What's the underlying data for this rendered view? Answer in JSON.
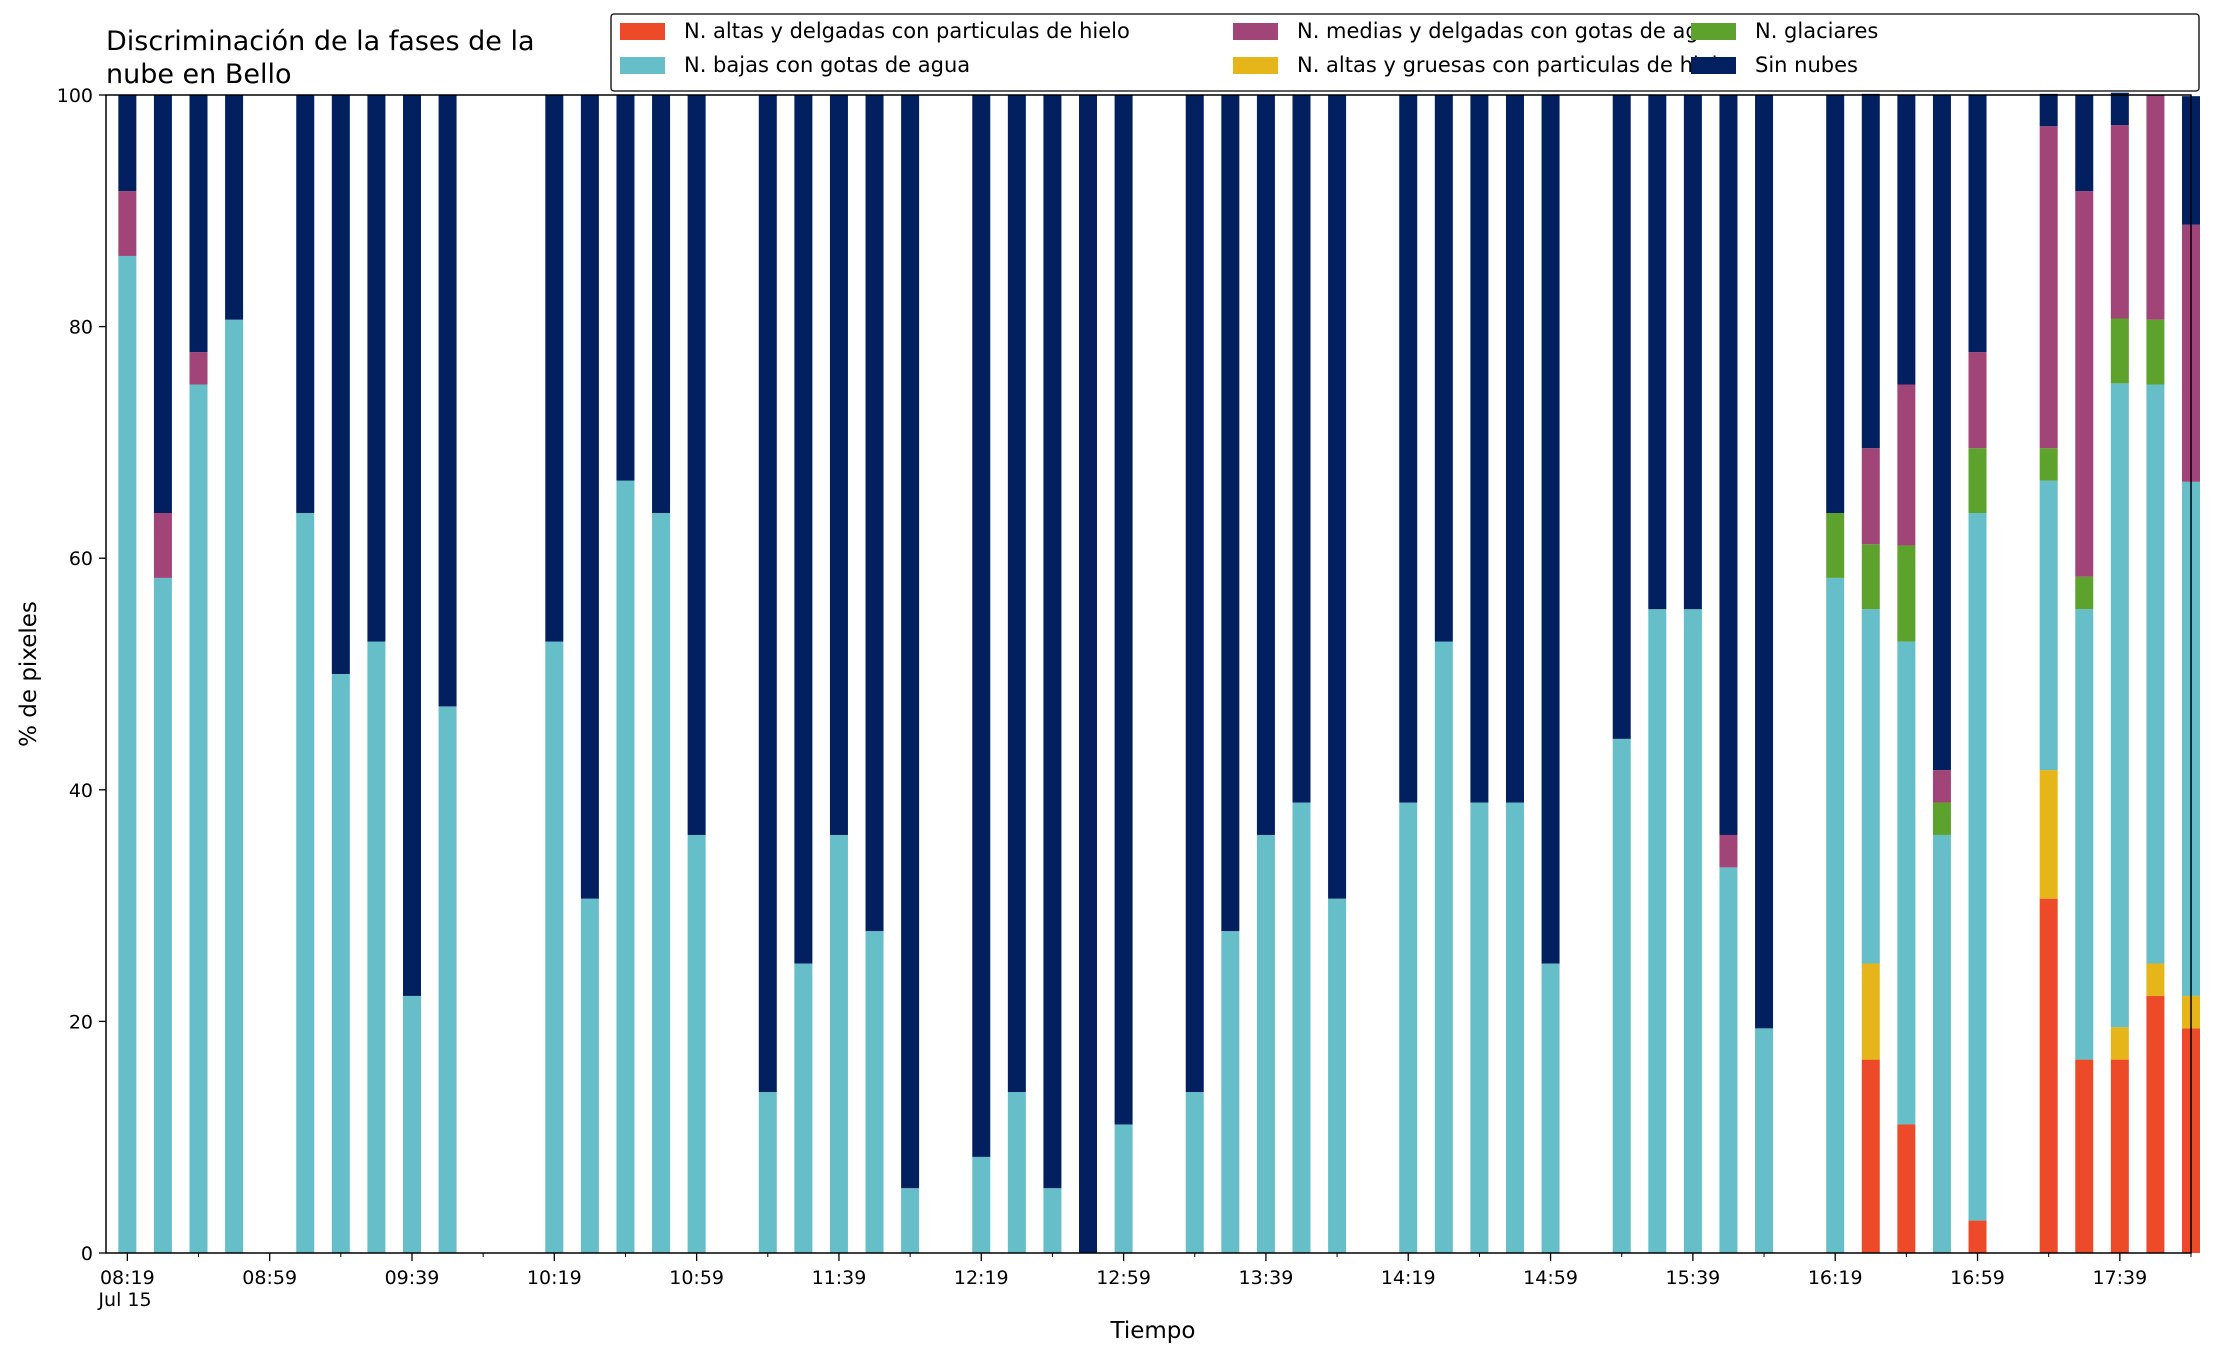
{
  "chart_data": {
    "type": "bar",
    "stacked": true,
    "title": "Discriminación de la fases de la nube en Bello",
    "title_lines": [
      "Discriminación de la fases de la",
      "nube en Bello"
    ],
    "xlabel": "Tiempo",
    "ylabel": "% de pixeles",
    "ylim": [
      0,
      100
    ],
    "yticks": [
      0,
      20,
      40,
      60,
      80,
      100
    ],
    "xlim": [
      "08:13",
      "17:59"
    ],
    "date_label": "Jul 15",
    "xtick_labels": [
      "08:19",
      "08:59",
      "09:39",
      "10:19",
      "10:59",
      "11:39",
      "12:19",
      "12:59",
      "13:39",
      "14:19",
      "14:59",
      "15:39",
      "16:19",
      "16:59",
      "17:39"
    ],
    "minor_ticks": [
      "08:39",
      "09:19",
      "09:59",
      "10:39",
      "11:19",
      "11:59",
      "12:39",
      "13:19",
      "13:59",
      "14:39",
      "15:19",
      "15:59",
      "16:39",
      "17:19",
      "17:59"
    ],
    "grid": false,
    "legend_position": "top-right",
    "legend_columns": 3,
    "legend_order": [
      0,
      2,
      4,
      1,
      3,
      5
    ],
    "categories": [
      "08:19",
      "08:29",
      "08:39",
      "08:49",
      "09:09",
      "09:19",
      "09:29",
      "09:39",
      "09:49",
      "10:19",
      "10:29",
      "10:39",
      "10:49",
      "10:59",
      "11:19",
      "11:29",
      "11:39",
      "11:49",
      "11:59",
      "12:19",
      "12:29",
      "12:39",
      "12:49",
      "12:59",
      "13:19",
      "13:29",
      "13:39",
      "13:49",
      "13:59",
      "14:19",
      "14:29",
      "14:39",
      "14:49",
      "14:59",
      "15:19",
      "15:29",
      "15:39",
      "15:49",
      "15:59",
      "16:19",
      "16:29",
      "16:39",
      "16:49",
      "16:59",
      "17:19",
      "17:29",
      "17:39",
      "17:49",
      "17:59"
    ],
    "series": [
      {
        "name": "N. altas y delgadas con particulas de hielo",
        "color": "#ed4a2a",
        "values": [
          0,
          0,
          0,
          0,
          0,
          0,
          0,
          0,
          0,
          0,
          0,
          0,
          0,
          0,
          0,
          0,
          0,
          0,
          0,
          0,
          0,
          0,
          0,
          0,
          0,
          0,
          0,
          0,
          0,
          0,
          0,
          0,
          0,
          0,
          0,
          0,
          0,
          0,
          0,
          0,
          16.7,
          11.1,
          0,
          2.8,
          30.6,
          16.7,
          16.7,
          22.2,
          19.4
        ]
      },
      {
        "name": "N. altas y gruesas con particulas de hielo",
        "color": "#e6b519",
        "values": [
          0,
          0,
          0,
          0,
          0,
          0,
          0,
          0,
          0,
          0,
          0,
          0,
          0,
          0,
          0,
          0,
          0,
          0,
          0,
          0,
          0,
          0,
          0,
          0,
          0,
          0,
          0,
          0,
          0,
          0,
          0,
          0,
          0,
          0,
          0,
          0,
          0,
          0,
          0,
          0,
          8.3,
          0,
          0,
          0,
          11.1,
          0,
          2.8,
          2.8,
          2.8
        ]
      },
      {
        "name": "N. bajas con gotas de agua",
        "color": "#65bec8",
        "values": [
          86.1,
          58.3,
          75.0,
          80.6,
          63.9,
          50.0,
          52.8,
          22.2,
          47.2,
          52.8,
          30.6,
          66.7,
          63.9,
          36.1,
          13.9,
          25.0,
          36.1,
          27.8,
          5.6,
          8.3,
          13.9,
          5.6,
          0,
          11.1,
          13.9,
          27.8,
          36.1,
          38.9,
          30.6,
          38.9,
          52.8,
          38.9,
          38.9,
          25.0,
          44.4,
          55.6,
          55.6,
          33.3,
          19.4,
          58.3,
          30.6,
          41.7,
          36.1,
          61.1,
          25.0,
          38.9,
          55.6,
          50.0,
          44.4
        ]
      },
      {
        "name": "N. glaciares",
        "color": "#5da22d",
        "values": [
          0,
          0,
          0,
          0,
          0,
          0,
          0,
          0,
          0,
          0,
          0,
          0,
          0,
          0,
          0,
          0,
          0,
          0,
          0,
          0,
          0,
          0,
          0,
          0,
          0,
          0,
          0,
          0,
          0,
          0,
          0,
          0,
          0,
          0,
          0,
          0,
          0,
          0,
          0,
          5.6,
          5.6,
          8.3,
          2.8,
          5.6,
          2.8,
          2.8,
          5.6,
          5.6,
          0
        ]
      },
      {
        "name": "N. medias y delgadas con gotas de agua",
        "color": "#a14578",
        "values": [
          5.6,
          5.6,
          2.8,
          0,
          0,
          0,
          0,
          0,
          0,
          0,
          0,
          0,
          0,
          0,
          0,
          0,
          0,
          0,
          0,
          0,
          0,
          0,
          0,
          0,
          0,
          0,
          0,
          0,
          0,
          0,
          0,
          0,
          0,
          0,
          0,
          0,
          0,
          2.8,
          0,
          0,
          8.3,
          13.9,
          2.8,
          8.3,
          27.8,
          33.3,
          16.7,
          19.4,
          22.2
        ]
      },
      {
        "name": "Sin nubes",
        "color": "#021f5f",
        "values": [
          8.3,
          36.1,
          22.2,
          19.4,
          36.1,
          50.0,
          47.2,
          77.8,
          52.8,
          47.2,
          69.4,
          33.3,
          36.1,
          63.9,
          86.1,
          75.0,
          63.9,
          72.2,
          94.4,
          91.7,
          86.1,
          94.4,
          100,
          88.9,
          86.1,
          72.2,
          63.9,
          61.1,
          69.4,
          61.1,
          47.2,
          61.1,
          61.1,
          75.0,
          55.6,
          44.4,
          44.4,
          63.9,
          80.6,
          36.1,
          30.6,
          25.0,
          58.3,
          22.2,
          2.8,
          8.3,
          2.8,
          0,
          11.1
        ]
      }
    ]
  }
}
